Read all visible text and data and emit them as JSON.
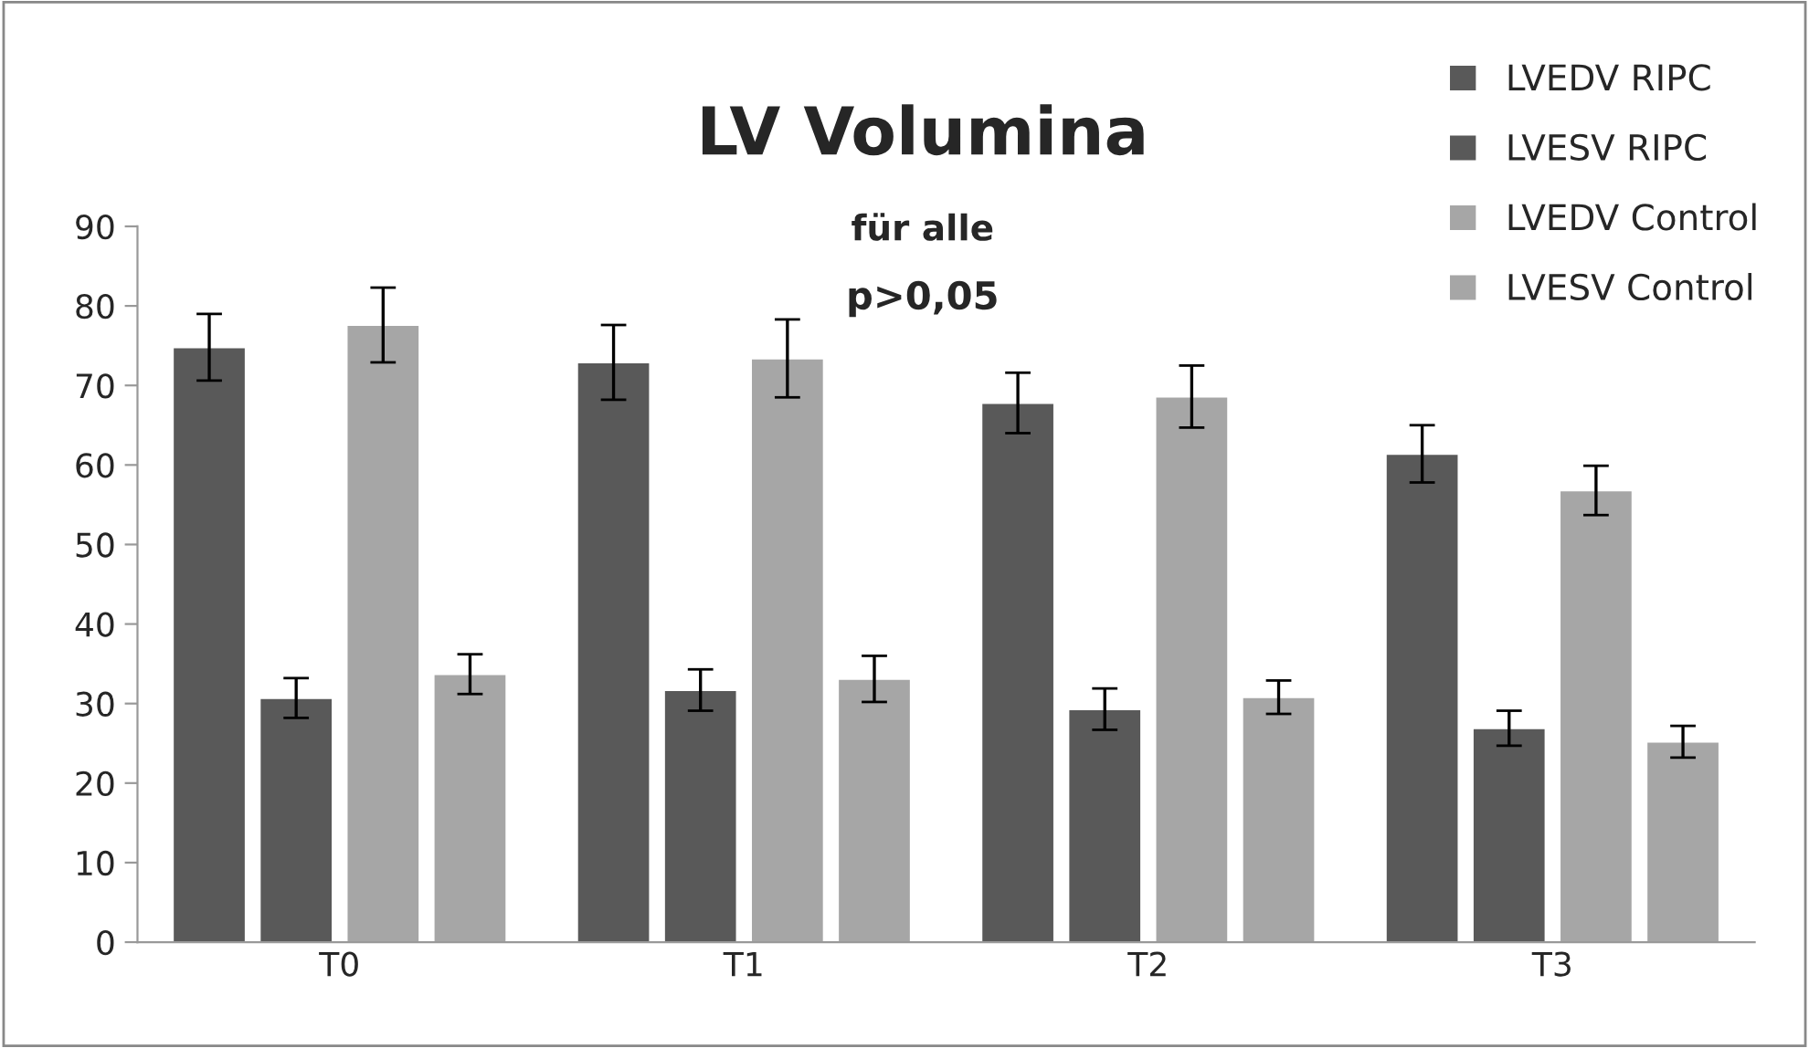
{
  "chart_data": {
    "type": "bar",
    "title": "LV Volumina",
    "subtitle": "für alle",
    "annotations": [
      "p>0,05"
    ],
    "categories": [
      "T0",
      "T1",
      "T2",
      "T3"
    ],
    "series": [
      {
        "name": "LVEDV RIPC",
        "color": "#595959",
        "values": [
          74.8,
          72.9,
          67.8,
          61.4
        ],
        "errors": [
          4.2,
          4.7,
          3.8,
          3.6
        ]
      },
      {
        "name": "LVESV RIPC",
        "color": "#595959",
        "values": [
          30.7,
          31.7,
          29.3,
          26.9
        ],
        "errors": [
          2.5,
          2.6,
          2.6,
          2.2
        ]
      },
      {
        "name": "LVEDV Control",
        "color": "#a6a6a6",
        "values": [
          77.6,
          73.4,
          68.6,
          56.8
        ],
        "errors": [
          4.7,
          4.9,
          3.9,
          3.1
        ]
      },
      {
        "name": "LVESV Control",
        "color": "#a6a6a6",
        "values": [
          33.7,
          33.1,
          30.8,
          25.2
        ],
        "errors": [
          2.5,
          2.9,
          2.1,
          2.0
        ]
      }
    ],
    "ylim": [
      0,
      90
    ],
    "yticks": [
      0,
      10,
      20,
      30,
      40,
      50,
      60,
      70,
      80,
      90
    ],
    "grid": false,
    "legend": "top right"
  }
}
